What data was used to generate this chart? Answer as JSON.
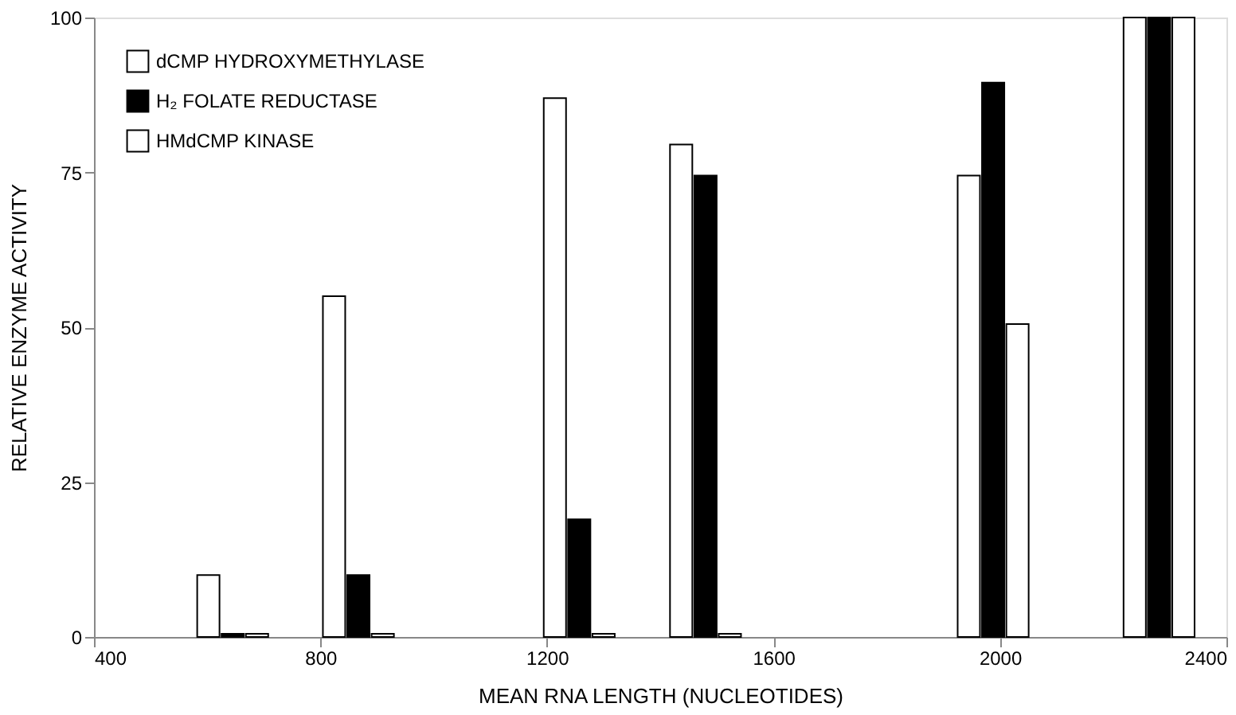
{
  "chart_data": {
    "type": "bar",
    "xlabel": "MEAN RNA LENGTH (NUCLEOTIDES)",
    "ylabel": "RELATIVE ENZYME ACTIVITY",
    "xlim": [
      400,
      2400
    ],
    "xticks": [
      400,
      800,
      1200,
      1600,
      2000,
      2400
    ],
    "ylim": [
      0,
      100
    ],
    "yticks": [
      0,
      25,
      50,
      75,
      100
    ],
    "grid": false,
    "legend": "top left",
    "series": [
      {
        "name": "dCMP HYDROXYMETHYLASE",
        "color": "#ffffff",
        "x": [
          602,
          824,
          1214,
          1437,
          1945,
          2238
        ],
        "values": [
          10,
          55,
          87,
          79.5,
          74.5,
          100
        ]
      },
      {
        "name": "H₂ FOLATE REDUCTASE",
        "color": "#000000",
        "x": [
          645,
          867,
          1257,
          1480,
          1988,
          2281
        ],
        "values": [
          0.5,
          10,
          19,
          74.5,
          89.5,
          100
        ]
      },
      {
        "name": "HMdCMP KINASE",
        "color": "#ffffff",
        "x": [
          688,
          910,
          1300,
          1523,
          2031,
          2324
        ],
        "values": [
          0.5,
          0.5,
          0.5,
          0.5,
          50.5,
          100
        ]
      }
    ]
  }
}
